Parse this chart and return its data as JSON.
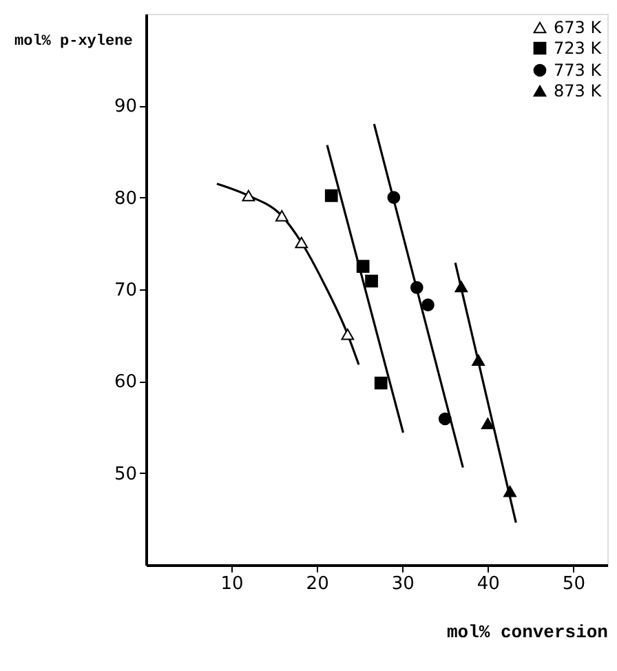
{
  "chart_data": {
    "type": "scatter",
    "xlabel": "mol% conversion",
    "ylabel": "mol% p-xylene",
    "xlim": [
      0,
      54
    ],
    "ylim": [
      40,
      100
    ],
    "xticks": [
      10,
      20,
      30,
      40,
      50
    ],
    "yticks": [
      50,
      60,
      70,
      80,
      90
    ],
    "grid": false,
    "legend": "top right",
    "series": [
      {
        "name": "673 K",
        "marker": "triangle",
        "color": "#ffffff",
        "x": [
          12.0,
          15.9,
          18.2,
          23.6
        ],
        "values": [
          80.2,
          78.0,
          75.1,
          65.1
        ]
      },
      {
        "name": "723 K",
        "marker": "square",
        "color": "#000000",
        "x": [
          21.7,
          25.4,
          26.4,
          27.5
        ],
        "values": [
          80.2,
          72.5,
          70.9,
          59.8
        ]
      },
      {
        "name": "773 K",
        "marker": "circle",
        "color": "#000000",
        "x": [
          29.0,
          31.7,
          33.0,
          35.0
        ],
        "values": [
          80.0,
          70.2,
          68.3,
          55.9
        ]
      },
      {
        "name": "873 K",
        "marker": "triangle",
        "color": "#000000",
        "x": [
          36.9,
          38.9,
          40.0,
          42.6
        ],
        "values": [
          70.3,
          62.3,
          55.4,
          48.0
        ]
      },
      {
        "type": "line",
        "color": "#000000",
        "x": [
          8.3,
          12.0,
          15.9,
          18.2,
          20.8,
          23.6,
          24.9
        ],
        "values": [
          81.5,
          80.2,
          78.0,
          75.1,
          70.7,
          65.1,
          61.8
        ]
      },
      {
        "type": "line",
        "color": "#000000",
        "x": [
          21.2,
          30.1
        ],
        "values": [
          85.7,
          54.4
        ]
      },
      {
        "type": "line",
        "color": "#000000",
        "x": [
          26.7,
          37.1
        ],
        "values": [
          88.0,
          50.6
        ]
      },
      {
        "type": "line",
        "color": "#000000",
        "x": [
          36.2,
          43.3
        ],
        "values": [
          72.9,
          44.6
        ]
      }
    ]
  }
}
